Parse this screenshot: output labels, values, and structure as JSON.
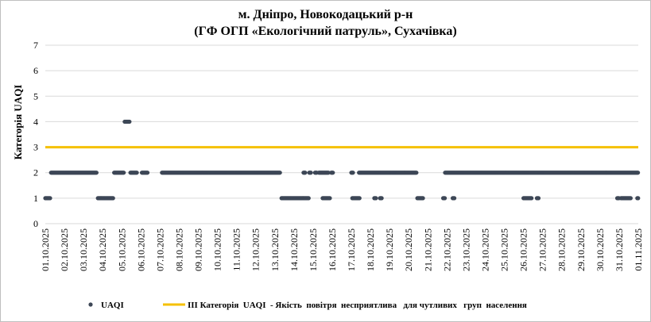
{
  "chart_data": {
    "type": "scatter",
    "title_line1": "м. Дніпро, Новокодацький р-н",
    "title_line2": "(ГФ ОГП «Екологічний патруль», Сухачівка)",
    "ylabel": "Категорія UAQI",
    "xlabel": "",
    "ylim": [
      0,
      7
    ],
    "yticks": [
      "0",
      "1",
      "2",
      "3",
      "4",
      "5",
      "6",
      "7"
    ],
    "xticks": [
      "01.10.2025",
      "02.10.2025",
      "03.10.2025",
      "04.10.2025",
      "05.10.2025",
      "06.10.2025",
      "07.10.2025",
      "08.10.2025",
      "09.10.2025",
      "10.10.2025",
      "11.10.2025",
      "12.10.2025",
      "13.10.2025",
      "14.10.2025",
      "15.10.2025",
      "16.10.2025",
      "17.10.2025",
      "18.10.2025",
      "19.10.2025",
      "20.10.2025",
      "21.10.2025",
      "22.10.2025",
      "23.10.2025",
      "24.10.2025",
      "25.10.2025",
      "26.10.2025",
      "27.10.2025",
      "28.10.2025",
      "29.10.2025",
      "30.10.2025",
      "31.10.2025",
      "01.11.2025"
    ],
    "grid": true,
    "legend_position": "bottom",
    "series": [
      {
        "name": "UAQI",
        "kind": "points",
        "color": "#3d4756",
        "x_unit": "days since 01.10.2025 00:00",
        "segments": [
          {
            "y": 1,
            "from": 0.0,
            "to": 0.25
          },
          {
            "y": 2,
            "from": 0.3,
            "to": 2.7
          },
          {
            "y": 1,
            "from": 2.75,
            "to": 3.55
          },
          {
            "y": 2,
            "from": 3.6,
            "to": 4.1
          },
          {
            "y": 4,
            "from": 4.15,
            "to": 4.4
          },
          {
            "y": 2,
            "from": 4.45,
            "to": 4.8
          },
          {
            "y": 2,
            "from": 5.05,
            "to": 5.35
          },
          {
            "y": 2,
            "from": 6.1,
            "to": 12.3
          },
          {
            "y": 1,
            "from": 12.35,
            "to": 13.8
          },
          {
            "y": 2,
            "from": 13.5,
            "to": 13.6
          },
          {
            "y": 2,
            "from": 13.8,
            "to": 13.9
          },
          {
            "y": 2,
            "from": 14.1,
            "to": 14.2
          },
          {
            "y": 2,
            "from": 14.3,
            "to": 14.8
          },
          {
            "y": 1,
            "from": 14.5,
            "to": 14.9
          },
          {
            "y": 2,
            "from": 14.95,
            "to": 15.05
          },
          {
            "y": 2,
            "from": 16.0,
            "to": 16.1
          },
          {
            "y": 1,
            "from": 16.05,
            "to": 16.45
          },
          {
            "y": 2,
            "from": 16.4,
            "to": 19.4
          },
          {
            "y": 1,
            "from": 17.2,
            "to": 17.3
          },
          {
            "y": 1,
            "from": 17.5,
            "to": 17.6
          },
          {
            "y": 1,
            "from": 19.45,
            "to": 19.75
          },
          {
            "y": 1,
            "from": 20.8,
            "to": 20.9
          },
          {
            "y": 2,
            "from": 20.9,
            "to": 31.0
          },
          {
            "y": 1,
            "from": 21.3,
            "to": 21.4
          },
          {
            "y": 1,
            "from": 25.0,
            "to": 25.45
          },
          {
            "y": 1,
            "from": 25.7,
            "to": 25.8
          },
          {
            "y": 1,
            "from": 29.9,
            "to": 30.0
          },
          {
            "y": 1,
            "from": 30.1,
            "to": 30.6
          },
          {
            "y": 1,
            "from": 30.95,
            "to": 31.0
          }
        ]
      },
      {
        "name": "III Категорія  UAQI  - Якість  повітря  несприятлива   для чутливих   груп  населення",
        "kind": "line",
        "color": "#f5c000",
        "y": 3
      }
    ]
  }
}
